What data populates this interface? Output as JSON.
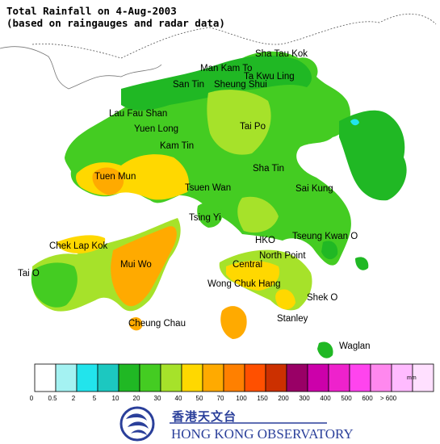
{
  "title_line1": "Total Rainfall on 4-Aug-2003",
  "title_line2": "(based on raingauges and radar data)",
  "places": [
    {
      "id": "sha-tau-kok",
      "label": "Sha Tau Kok"
    },
    {
      "id": "man-kam-to",
      "label": "Man Kam To"
    },
    {
      "id": "ta-kwu-ling",
      "label": "Ta Kwu Ling"
    },
    {
      "id": "san-tin",
      "label": "San Tin"
    },
    {
      "id": "sheung-shui",
      "label": "Sheung Shui"
    },
    {
      "id": "lau-fau-shan",
      "label": "Lau Fau Shan"
    },
    {
      "id": "yuen-long",
      "label": "Yuen Long"
    },
    {
      "id": "tai-po",
      "label": "Tai Po"
    },
    {
      "id": "kam-tin",
      "label": "Kam Tin"
    },
    {
      "id": "sha-tin",
      "label": "Sha Tin"
    },
    {
      "id": "tuen-mun",
      "label": "Tuen Mun"
    },
    {
      "id": "tsuen-wan",
      "label": "Tsuen Wan"
    },
    {
      "id": "sai-kung",
      "label": "Sai Kung"
    },
    {
      "id": "tsing-yi",
      "label": "Tsing Yi"
    },
    {
      "id": "chek-lap-kok",
      "label": "Chek Lap Kok"
    },
    {
      "id": "hko",
      "label": "HKO"
    },
    {
      "id": "tseung-kwan-o",
      "label": "Tseung Kwan O"
    },
    {
      "id": "north-point",
      "label": "North Point"
    },
    {
      "id": "mui-wo",
      "label": "Mui Wo"
    },
    {
      "id": "central",
      "label": "Central"
    },
    {
      "id": "tai-o",
      "label": "Tai O"
    },
    {
      "id": "wong-chuk-hang",
      "label": "Wong Chuk Hang"
    },
    {
      "id": "shek-o",
      "label": "Shek O"
    },
    {
      "id": "cheung-chau",
      "label": "Cheung Chau"
    },
    {
      "id": "stanley",
      "label": "Stanley"
    },
    {
      "id": "waglan",
      "label": "Waglan"
    }
  ],
  "legend": {
    "unit": "mm",
    "colors": [
      "#ffffff",
      "#a4f2f2",
      "#22e4ec",
      "#1cc8c0",
      "#20b824",
      "#44cc22",
      "#a6e22a",
      "#ffd800",
      "#ffaa00",
      "#ff8000",
      "#ff5000",
      "#cc3000",
      "#990066",
      "#cc00aa",
      "#ee22cc",
      "#ff44ee",
      "#ff88ee",
      "#ffbbff",
      "#ffe0ff"
    ],
    "ticks": [
      "0",
      "0.5",
      "2",
      "5",
      "10",
      "20",
      "30",
      "40",
      "50",
      "70",
      "100",
      "150",
      "200",
      "300",
      "400",
      "500",
      "600",
      "> 600"
    ]
  },
  "rain_colors": {
    "green_dark": "#20b824",
    "green": "#44cc22",
    "green_light": "#a6e22a",
    "yellow": "#ffd800",
    "orange": "#ffaa00",
    "cyan": "#22e4ec",
    "mainland": "#ffffff",
    "sea": "#ffffff"
  },
  "logo": {
    "chinese_name": "香港天文台",
    "english_name": "HONG KONG OBSERVATORY",
    "mark_color": "#2a3f9a"
  }
}
